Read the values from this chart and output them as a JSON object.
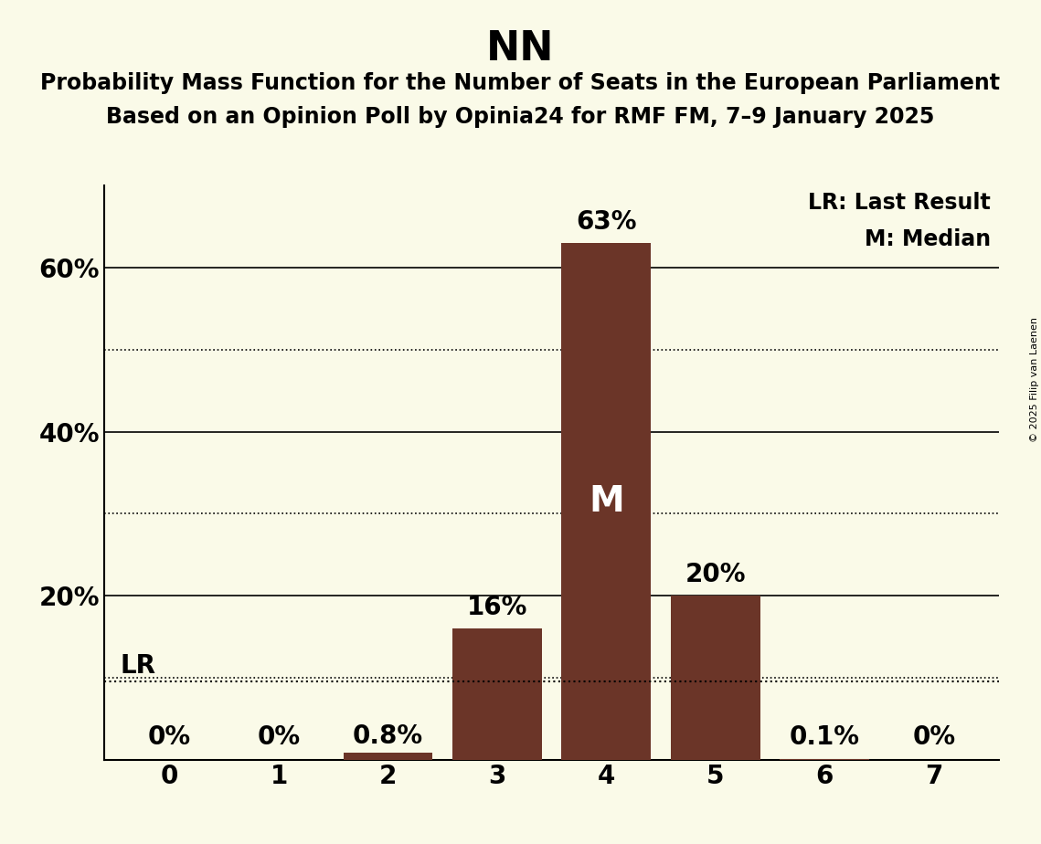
{
  "title": "NN",
  "subtitle_line1": "Probability Mass Function for the Number of Seats in the European Parliament",
  "subtitle_line2": "Based on an Opinion Poll by Opinia24 for RMF FM, 7–9 January 2025",
  "copyright": "© 2025 Filip van Laenen",
  "categories": [
    0,
    1,
    2,
    3,
    4,
    5,
    6,
    7
  ],
  "values": [
    0.0,
    0.0,
    0.8,
    16.0,
    63.0,
    20.0,
    0.1,
    0.0
  ],
  "bar_color": "#6B3528",
  "background_color": "#FAFAE8",
  "bar_labels": [
    "0%",
    "0%",
    "0.8%",
    "16%",
    "63%",
    "20%",
    "0.1%",
    "0%"
  ],
  "median_bar": 4,
  "median_label": "M",
  "lr_value": 9.5,
  "lr_label": "LR",
  "legend_lr": "LR: Last Result",
  "legend_m": "M: Median",
  "yticks_solid": [
    20,
    40,
    60
  ],
  "yticks_dotted": [
    10,
    30,
    50
  ],
  "ylim": [
    0,
    70
  ],
  "title_fontsize": 32,
  "subtitle_fontsize": 17,
  "tick_fontsize": 20,
  "bar_label_fontsize": 20,
  "legend_fontsize": 17,
  "median_label_fontsize": 28
}
